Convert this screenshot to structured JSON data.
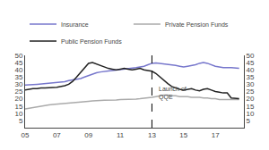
{
  "chart_data": {
    "type": "line",
    "x": [
      2005.0,
      2005.25,
      2005.5,
      2005.75,
      2006.0,
      2006.25,
      2006.5,
      2006.75,
      2007.0,
      2007.25,
      2007.5,
      2007.75,
      2008.0,
      2008.25,
      2008.5,
      2008.75,
      2009.0,
      2009.25,
      2009.5,
      2009.75,
      2010.0,
      2010.25,
      2010.5,
      2010.75,
      2011.0,
      2011.25,
      2011.5,
      2011.75,
      2012.0,
      2012.25,
      2012.5,
      2012.75,
      2013.0,
      2013.25,
      2013.5,
      2013.75,
      2014.0,
      2014.25,
      2014.5,
      2014.75,
      2015.0,
      2015.25,
      2015.5,
      2015.75,
      2016.0,
      2016.25,
      2016.5,
      2016.75,
      2017.0,
      2017.25,
      2017.5,
      2017.75,
      2018.0,
      2018.5
    ],
    "series": [
      {
        "name": "Insurance",
        "color": "#7777cc",
        "values": [
          29.5,
          29.5,
          29.8,
          30.0,
          30.2,
          30.5,
          30.8,
          31.0,
          31.2,
          31.5,
          31.8,
          32.5,
          33.0,
          33.5,
          34.0,
          35.0,
          36.0,
          37.0,
          38.0,
          38.5,
          39.0,
          39.2,
          39.5,
          39.8,
          40.0,
          40.2,
          40.5,
          40.8,
          41.5,
          42.0,
          42.5,
          43.5,
          44.5,
          44.8,
          44.5,
          44.2,
          44.0,
          43.5,
          43.0,
          42.5,
          42.0,
          42.5,
          43.0,
          43.5,
          44.5,
          45.0,
          44.5,
          43.5,
          42.5,
          42.0,
          41.5,
          41.5,
          41.5,
          41.0
        ]
      },
      {
        "name": "Private Pension Funds",
        "color": "#aaaaaa",
        "values": [
          13.0,
          13.5,
          14.0,
          14.5,
          15.0,
          15.5,
          15.8,
          16.0,
          16.2,
          16.5,
          16.8,
          17.0,
          17.2,
          17.5,
          17.8,
          18.0,
          18.2,
          18.5,
          18.5,
          18.8,
          19.0,
          19.0,
          19.2,
          19.2,
          19.5,
          19.5,
          19.5,
          19.5,
          19.8,
          20.0,
          20.2,
          20.5,
          21.0,
          21.5,
          22.0,
          22.5,
          22.5,
          22.0,
          22.0,
          21.5,
          21.5,
          21.5,
          21.0,
          21.0,
          21.0,
          20.5,
          20.5,
          20.0,
          20.0,
          19.5,
          19.5,
          19.5,
          19.5,
          19.5
        ]
      },
      {
        "name": "Public Pension Funds",
        "color": "#222222",
        "values": [
          26.0,
          26.5,
          27.0,
          27.0,
          27.5,
          27.5,
          27.5,
          27.8,
          28.0,
          28.5,
          29.0,
          30.0,
          32.0,
          35.0,
          38.0,
          41.0,
          44.5,
          45.0,
          44.0,
          43.0,
          42.0,
          41.0,
          40.5,
          40.0,
          40.5,
          41.0,
          40.5,
          40.0,
          40.5,
          41.0,
          40.0,
          39.5,
          39.0,
          37.5,
          35.0,
          33.0,
          30.5,
          28.5,
          27.5,
          26.5,
          26.0,
          26.5,
          27.0,
          26.0,
          25.5,
          26.5,
          27.0,
          26.0,
          25.0,
          24.5,
          24.0,
          24.0,
          20.5,
          20.0
        ]
      }
    ],
    "xlim": [
      2005,
      2018.8
    ],
    "xticks": [
      {
        "value": 2005,
        "label": "05"
      },
      {
        "value": 2007,
        "label": "07"
      },
      {
        "value": 2009,
        "label": "09"
      },
      {
        "value": 2011,
        "label": "11"
      },
      {
        "value": 2013,
        "label": "13"
      },
      {
        "value": 2015,
        "label": "15"
      },
      {
        "value": 2017,
        "label": "17"
      }
    ],
    "ylim": [
      0,
      50
    ],
    "yticks": [
      5,
      10,
      15,
      20,
      25,
      30,
      35,
      40,
      45,
      50
    ],
    "y2lim": [
      0,
      50
    ],
    "y2ticks": [
      5,
      10,
      15,
      20,
      25,
      30,
      35,
      40,
      45,
      50
    ],
    "vlines": [
      {
        "x": 2013,
        "color": "#000000",
        "line_style": "dashed"
      }
    ],
    "annotations": [
      {
        "text": "Launch of\nQQE",
        "x": 2013.3,
        "y": 30
      }
    ],
    "legend": "upper left",
    "grid": false
  }
}
